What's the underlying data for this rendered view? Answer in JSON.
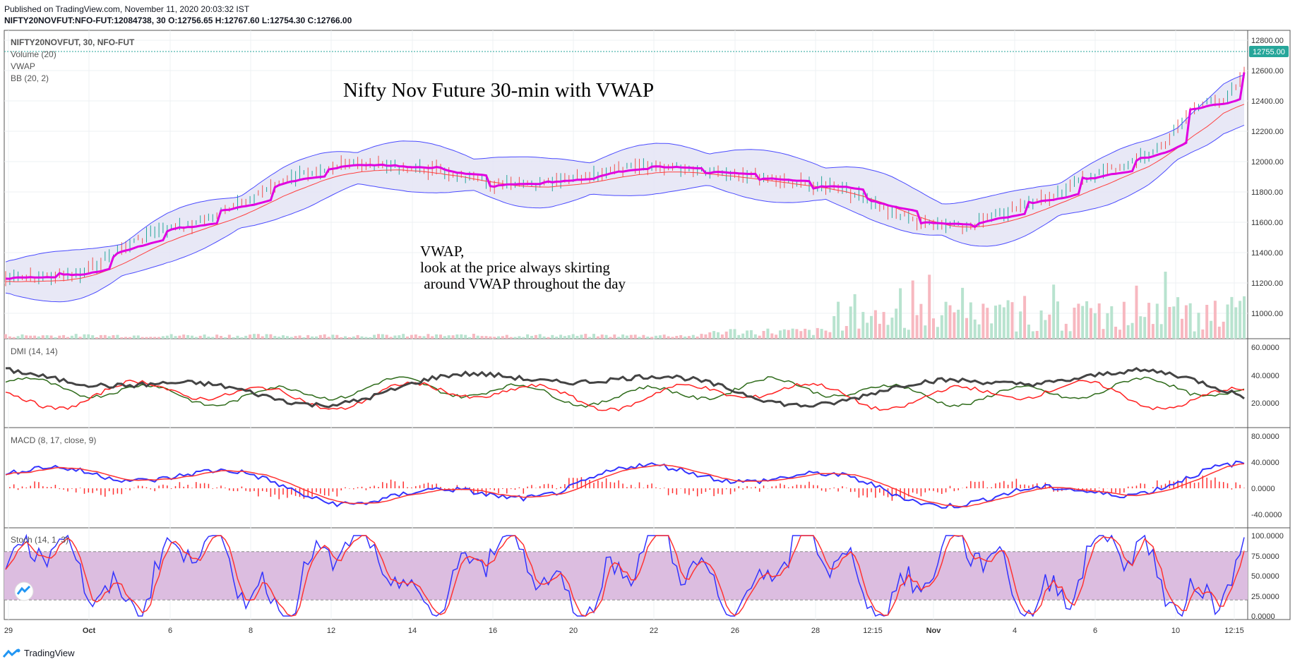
{
  "header": {
    "published": "Published on TradingView.com, November 11, 2020 20:03:32 IST",
    "symbol_line": "NIFTY20NOVFUT:NFO-FUT:12084738, 30",
    "ohlc": "O:12756.65 H:12767.60 L:12754.30 C:12766.00"
  },
  "main_panel": {
    "legend": [
      "NIFTY20NOVFUT, 30, NFO-FUT",
      "Volume (20)",
      "VWAP",
      "BB (20, 2)"
    ],
    "y_ticks": [
      "12800.00",
      "12600.00",
      "12400.00",
      "12200.00",
      "12000.00",
      "11800.00",
      "11600.00",
      "11400.00",
      "11200.00",
      "11000.00"
    ],
    "last_price": "12755.00",
    "annotation_title": "Nifty Nov Future 30-min with VWAP",
    "annotation_text": [
      "VWAP,",
      "look at the price always skirting",
      " around VWAP throughout the day"
    ]
  },
  "dmi_panel": {
    "label": "DMI (14, 14)",
    "y_ticks": [
      "60.0000",
      "40.0000",
      "20.0000"
    ]
  },
  "macd_panel": {
    "label": "MACD (8, 17, close, 9)",
    "y_ticks": [
      "80.0000",
      "40.0000",
      "0.0000",
      "-40.0000"
    ]
  },
  "stoch_panel": {
    "label": "Stoch (14, 1, 3)",
    "y_ticks": [
      "100.0000",
      "75.0000",
      "50.0000",
      "25.0000",
      "0.0000"
    ]
  },
  "x_ticks": [
    "29",
    "Oct",
    "6",
    "8",
    "12",
    "14",
    "16",
    "20",
    "22",
    "26",
    "28",
    "12:15",
    "Nov",
    "4",
    "6",
    "10",
    "12:15"
  ],
  "colors": {
    "vwap": "#e000e0",
    "bb_band": "#4b4bff",
    "bb_fill": "#e4e4f5",
    "basis": "#ff4040",
    "vol_up": "#b8e3cf",
    "vol_down": "#f7b8c0",
    "dmi_plus": "#2e6b1a",
    "dmi_minus": "#ff2020",
    "adx": "#444444",
    "macd": "#3333ff",
    "signal": "#ff3333",
    "stoch_k": "#3333ff",
    "stoch_d": "#ff3333",
    "stoch_band": "#dcbde0"
  },
  "footer": {
    "brand": "TradingView"
  }
}
